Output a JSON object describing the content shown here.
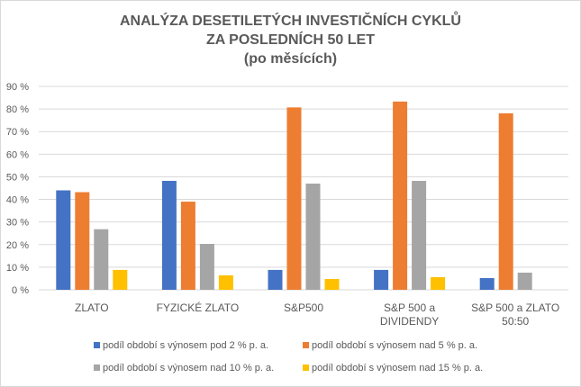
{
  "chart_data": {
    "type": "bar",
    "title": [
      "ANALÝZA DESETILETÝCH INVESTIČNÍCH CYKLŮ",
      "ZA POSLEDNÍCH 50 LET",
      "(po měsících)"
    ],
    "categories": [
      [
        "ZLATO"
      ],
      [
        "FYZICKÉ ZLATO"
      ],
      [
        "S&P500"
      ],
      [
        "S&P 500 a",
        "DIVIDENDY"
      ],
      [
        "S&P 500 a ZLATO",
        "50:50"
      ]
    ],
    "series": [
      {
        "name": "podíl období s výnosem pod 2  % p. a.",
        "color": "#4472c4",
        "values": [
          44,
          48.2,
          8.8,
          8.8,
          5.2
        ]
      },
      {
        "name": "podíl období s výnosem nad 5 % p. a.",
        "color": "#ed7d31",
        "values": [
          43.2,
          39,
          80.7,
          83.3,
          78.1
        ]
      },
      {
        "name": "podíl období s výnosem nad 10 % p. a.",
        "color": "#a5a5a5",
        "values": [
          26.8,
          20.3,
          47,
          48.2,
          7.6
        ]
      },
      {
        "name": "podíl období s výnosem nad 15 % p. a.",
        "color": "#ffc000",
        "values": [
          8.8,
          6.4,
          4.8,
          5.6,
          0
        ]
      }
    ],
    "yticks": [
      "0 %",
      "10 %",
      "20 %",
      "30 %",
      "40 %",
      "50 %",
      "60 %",
      "70 %",
      "80 %",
      "90 %"
    ],
    "ylim": [
      0,
      90
    ],
    "grid": true,
    "legend": "bottom"
  }
}
